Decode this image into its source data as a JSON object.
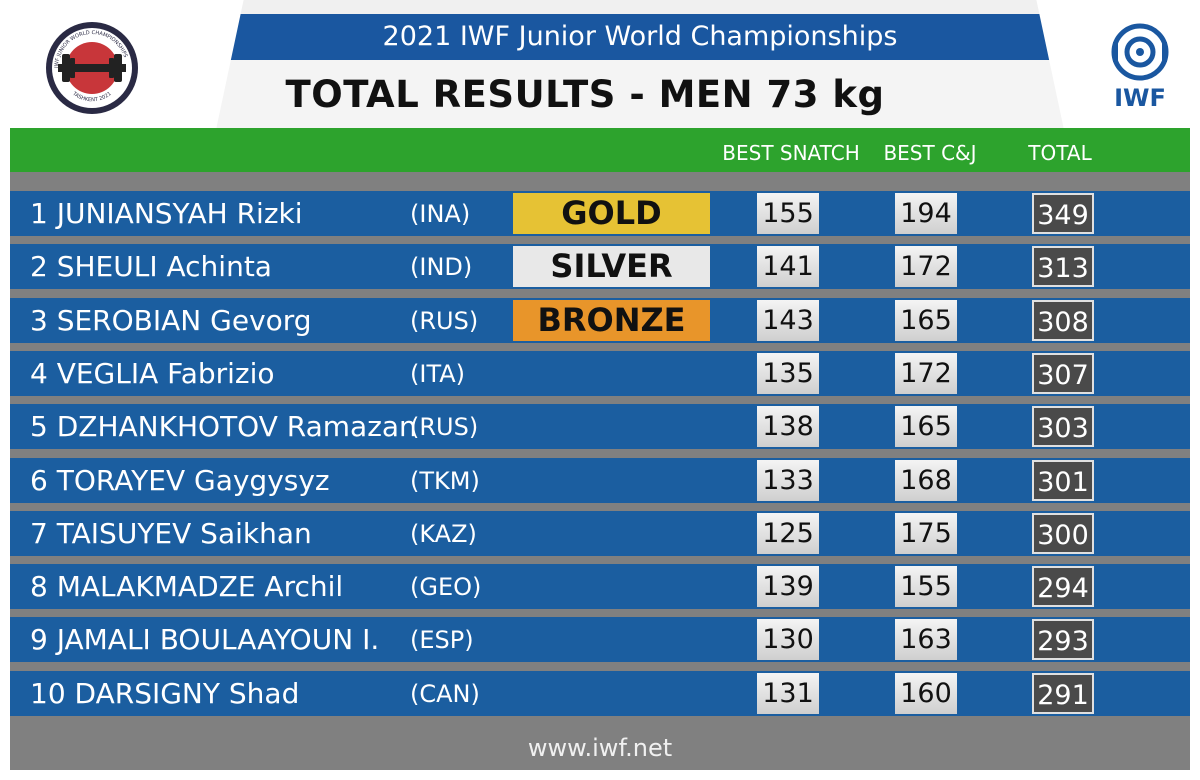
{
  "header": {
    "competition": "2021 IWF Junior World Championships",
    "title": "TOTAL RESULTS - MEN 73 kg",
    "left_logo_text": "IWF JUNIOR WORLD CHAMPIONSHIPS",
    "left_logo_city": "TASHKENT 2021",
    "right_logo_text": "IWF"
  },
  "columns": {
    "snatch": "BEST SNATCH",
    "cj": "BEST C&J",
    "total": "TOTAL"
  },
  "rows": [
    {
      "rank_name": "1 JUNIANSYAH Rizki",
      "nation": "(INA)",
      "medal": "GOLD",
      "snatch": "155",
      "cj": "194",
      "total": "349"
    },
    {
      "rank_name": "2 SHEULI Achinta",
      "nation": "(IND)",
      "medal": "SILVER",
      "snatch": "141",
      "cj": "172",
      "total": "313"
    },
    {
      "rank_name": "3 SEROBIAN Gevorg",
      "nation": "(RUS)",
      "medal": "BRONZE",
      "snatch": "143",
      "cj": "165",
      "total": "308"
    },
    {
      "rank_name": "4 VEGLIA Fabrizio",
      "nation": "(ITA)",
      "medal": "",
      "snatch": "135",
      "cj": "172",
      "total": "307"
    },
    {
      "rank_name": "5 DZHANKHOTOV Ramazan",
      "nation": "(RUS)",
      "medal": "",
      "snatch": "138",
      "cj": "165",
      "total": "303"
    },
    {
      "rank_name": "6 TORAYEV Gaygysyz",
      "nation": "(TKM)",
      "medal": "",
      "snatch": "133",
      "cj": "168",
      "total": "301"
    },
    {
      "rank_name": "7 TAISUYEV Saikhan",
      "nation": "(KAZ)",
      "medal": "",
      "snatch": "125",
      "cj": "175",
      "total": "300"
    },
    {
      "rank_name": "8 MALAKMADZE Archil",
      "nation": "(GEO)",
      "medal": "",
      "snatch": "139",
      "cj": "155",
      "total": "294"
    },
    {
      "rank_name": "9 JAMALI BOULAAYOUN I.",
      "nation": "(ESP)",
      "medal": "",
      "snatch": "130",
      "cj": "163",
      "total": "293"
    },
    {
      "rank_name": "10 DARSIGNY Shad",
      "nation": "(CAN)",
      "medal": "",
      "snatch": "131",
      "cj": "160",
      "total": "291"
    }
  ],
  "footer": {
    "url": "www.iwf.net"
  },
  "colors": {
    "row_blue": "#1b5ea0",
    "header_green": "#2da32d",
    "gold": "#e6c234",
    "silver": "#e8e8e8",
    "bronze": "#e8952a"
  }
}
